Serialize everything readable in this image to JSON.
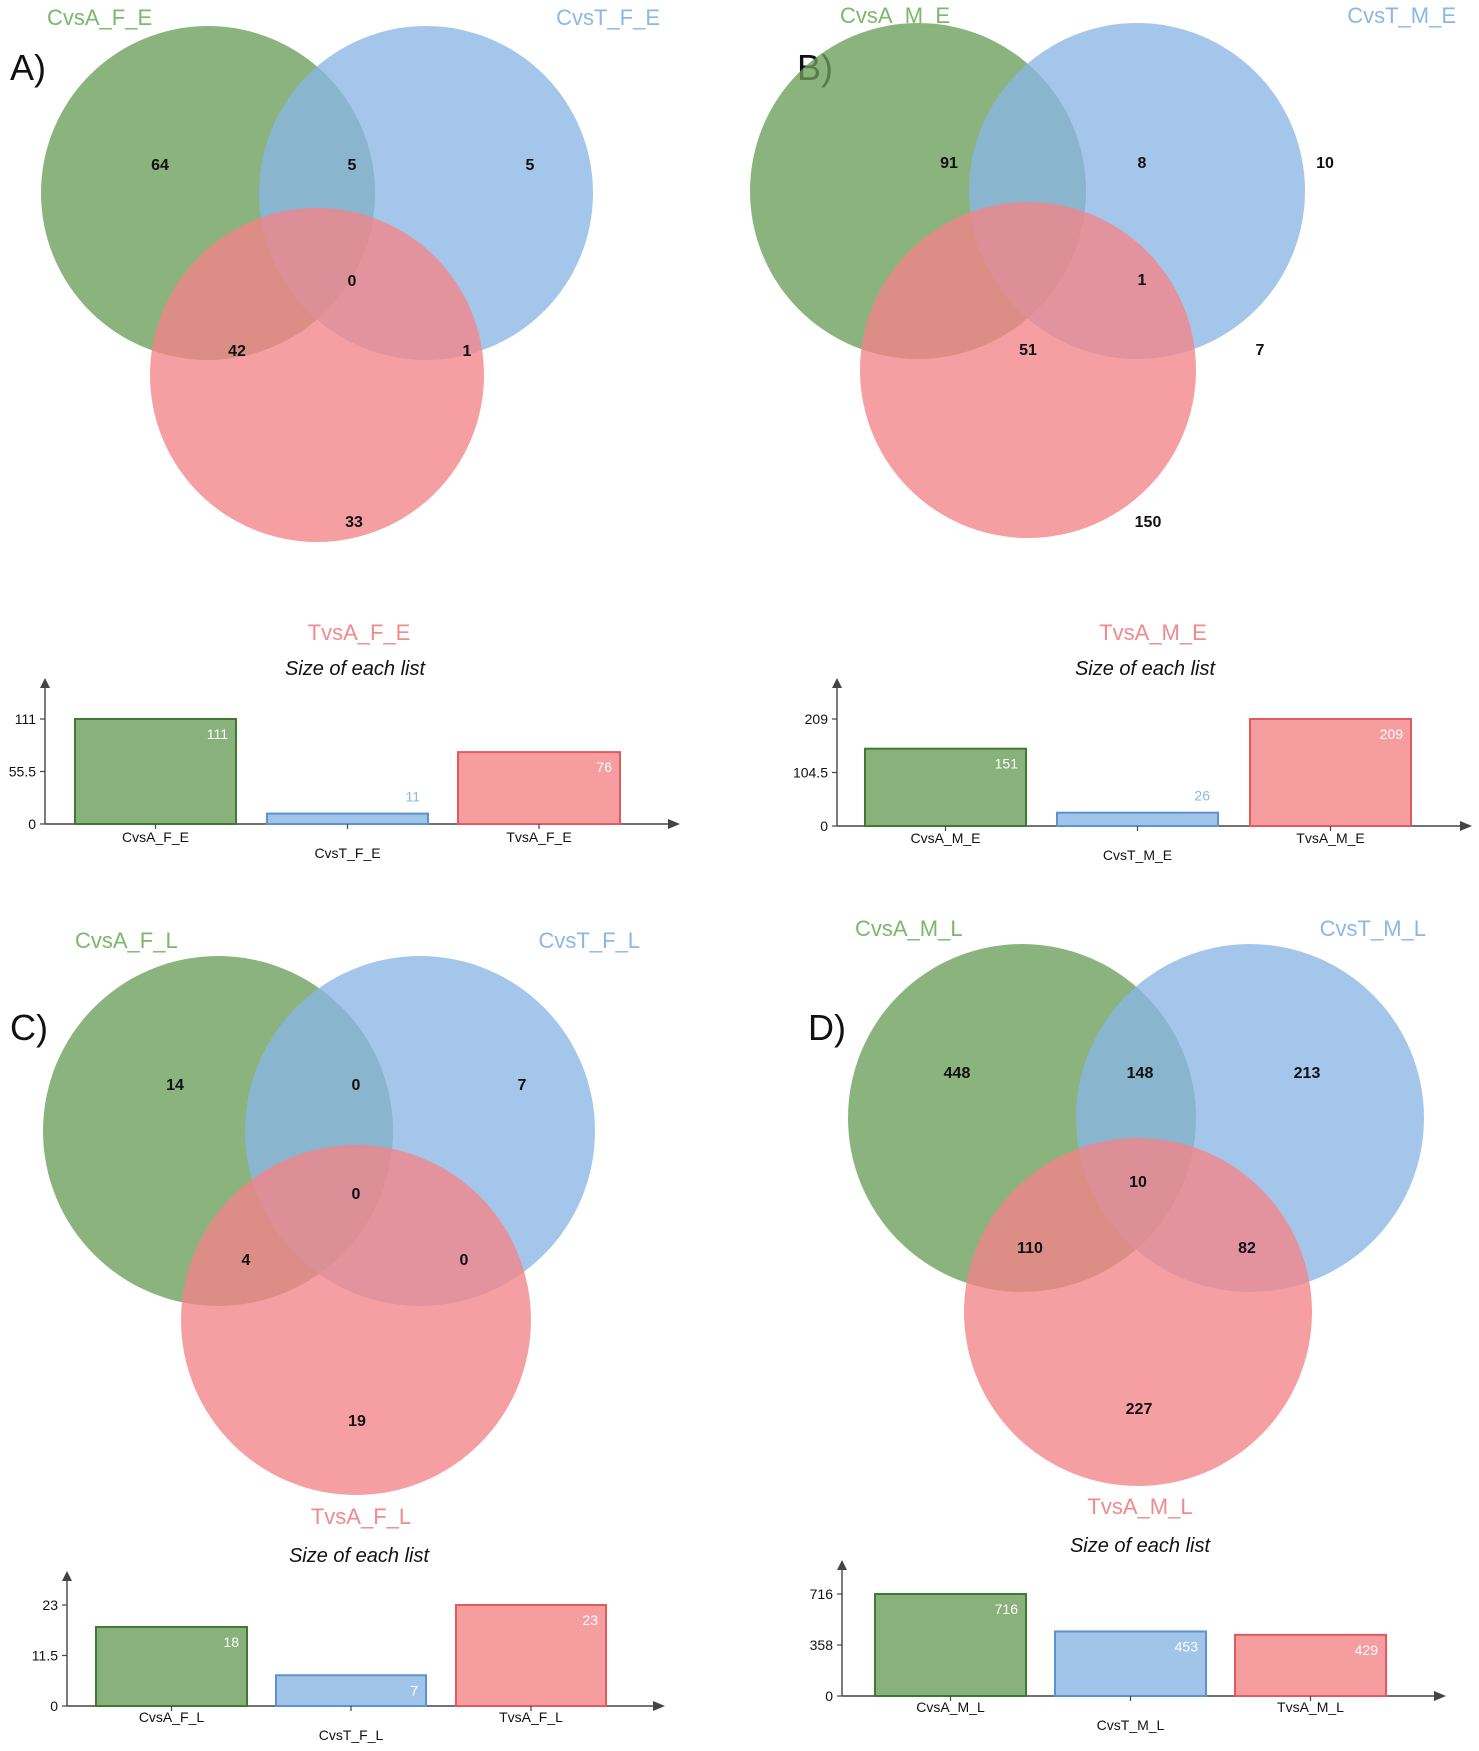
{
  "colors": {
    "green_fill": "#6a9e5a",
    "green_stroke": "#3f7a34",
    "blue_fill": "#8ab6e4",
    "blue_stroke": "#5c93cf",
    "red_fill": "#f48488",
    "red_stroke": "#e05a60",
    "green_label": "#7ab86a",
    "blue_label": "#8ab8e6",
    "red_label": "#f08a8e",
    "axis": "#444444"
  },
  "chart_data": [
    {
      "panel": "A)",
      "type": "venn",
      "sets": [
        "CvsA_F_E",
        "CvsT_F_E",
        "TvsA_F_E"
      ],
      "regions": {
        "only_1": "64",
        "only_2": "5",
        "only_3": "33",
        "r12": "5",
        "r13": "42",
        "r23": "1",
        "r123": "0"
      },
      "bar": {
        "type": "bar",
        "title": "Size of each list",
        "categories": [
          "CvsA_F_E",
          "CvsT_F_E",
          "TvsA_F_E"
        ],
        "values": [
          111,
          11,
          76
        ],
        "value_labels": [
          "111",
          "11",
          "76"
        ],
        "yticks": [
          "0",
          "55.5",
          "111"
        ],
        "ylim": [
          0,
          111
        ]
      }
    },
    {
      "panel": "B)",
      "type": "venn",
      "sets": [
        "CvsA_M_E",
        "CvsT_M_E",
        "TvsA_M_E"
      ],
      "regions": {
        "only_1": "91",
        "only_2": "10",
        "only_3": "150",
        "r12": "8",
        "r13": "51",
        "r23": "7",
        "r123": "1"
      },
      "bar": {
        "type": "bar",
        "title": "Size of each list",
        "categories": [
          "CvsA_M_E",
          "CvsT_M_E",
          "TvsA_M_E"
        ],
        "values": [
          151,
          26,
          209
        ],
        "value_labels": [
          "151",
          "26",
          "209"
        ],
        "yticks": [
          "0",
          "104.5",
          "209"
        ],
        "ylim": [
          0,
          209
        ]
      }
    },
    {
      "panel": "C)",
      "type": "venn",
      "sets": [
        "CvsA_F_L",
        "CvsT_F_L",
        "TvsA_F_L"
      ],
      "regions": {
        "only_1": "14",
        "only_2": "7",
        "only_3": "19",
        "r12": "0",
        "r13": "4",
        "r23": "0",
        "r123": "0"
      },
      "bar": {
        "type": "bar",
        "title": "Size of each list",
        "categories": [
          "CvsA_F_L",
          "CvsT_F_L",
          "TvsA_F_L"
        ],
        "values": [
          18,
          7,
          23
        ],
        "value_labels": [
          "18",
          "7",
          "23"
        ],
        "yticks": [
          "0",
          "11.5",
          "23"
        ],
        "ylim": [
          0,
          23
        ]
      }
    },
    {
      "panel": "D)",
      "type": "venn",
      "sets": [
        "CvsA_M_L",
        "CvsT_M_L",
        "TvsA_M_L"
      ],
      "regions": {
        "only_1": "448",
        "only_2": "213",
        "only_3": "227",
        "r12": "148",
        "r13": "110",
        "r23": "82",
        "r123": "10"
      },
      "bar": {
        "type": "bar",
        "title": "Size of each list",
        "categories": [
          "CvsA_M_L",
          "CvsT_M_L",
          "TvsA_M_L"
        ],
        "values": [
          716,
          453,
          429
        ],
        "value_labels": [
          "716",
          "453",
          "429"
        ],
        "yticks": [
          "0",
          "358",
          "716"
        ],
        "ylim": [
          0,
          716
        ]
      }
    }
  ]
}
